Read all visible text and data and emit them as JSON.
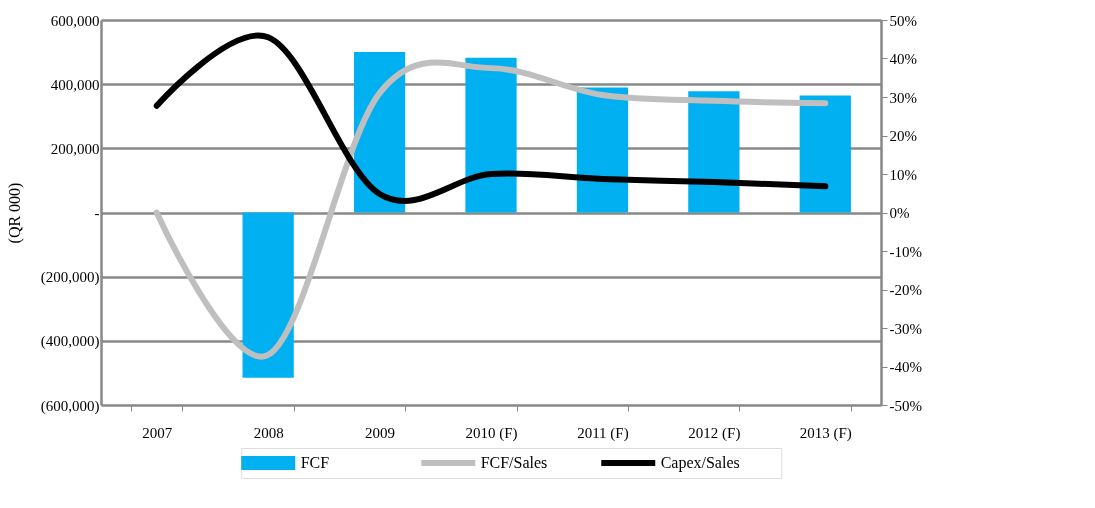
{
  "chart_data": {
    "type": "bar",
    "categories": [
      "2007",
      "2008",
      "2009",
      "2010 (F)",
      "2011 (F)",
      "2012 (F)",
      "2013 (F)"
    ],
    "ylabel": "(QR 000)",
    "series": [
      {
        "name": "FCF",
        "color": "#00b0f0",
        "values": [
          null,
          -515000,
          500000,
          482000,
          390000,
          378000,
          365000
        ]
      },
      {
        "name": "FCF/Sales",
        "type": "line",
        "axis": "y2",
        "color": "#bfbfbf",
        "values": [
          0,
          -37,
          31,
          37.5,
          30.5,
          29,
          28.4
        ]
      },
      {
        "name": "Capex/Sales",
        "type": "line",
        "axis": "y2",
        "color": "#000000",
        "values": [
          27.7,
          45.5,
          4.8,
          10,
          8.7,
          7.9,
          6.8
        ]
      }
    ],
    "ylim": [
      -600000,
      600000
    ],
    "yticks": [
      {
        "value": 600000,
        "label": "600,000"
      },
      {
        "value": 400000,
        "label": "400,000"
      },
      {
        "value": 200000,
        "label": "200,000"
      },
      {
        "value": 0,
        "label": "-"
      },
      {
        "value": -200000,
        "label": "(200,000)"
      },
      {
        "value": -400000,
        "label": "(400,000)"
      },
      {
        "value": -600000,
        "label": "(600,000)"
      }
    ],
    "y2lim": [
      -50,
      50
    ],
    "y2ticks": [
      {
        "value": 50,
        "label": "50%"
      },
      {
        "value": 40,
        "label": "40%"
      },
      {
        "value": 30,
        "label": "30%"
      },
      {
        "value": 20,
        "label": "20%"
      },
      {
        "value": 10,
        "label": "10%"
      },
      {
        "value": 0,
        "label": "0%"
      },
      {
        "value": -10,
        "label": "-10%"
      },
      {
        "value": -20,
        "label": "-20%"
      },
      {
        "value": -30,
        "label": "-30%"
      },
      {
        "value": -40,
        "label": "-40%"
      },
      {
        "value": -50,
        "label": "-50%"
      }
    ],
    "grid": "y",
    "legend": "bottom"
  }
}
